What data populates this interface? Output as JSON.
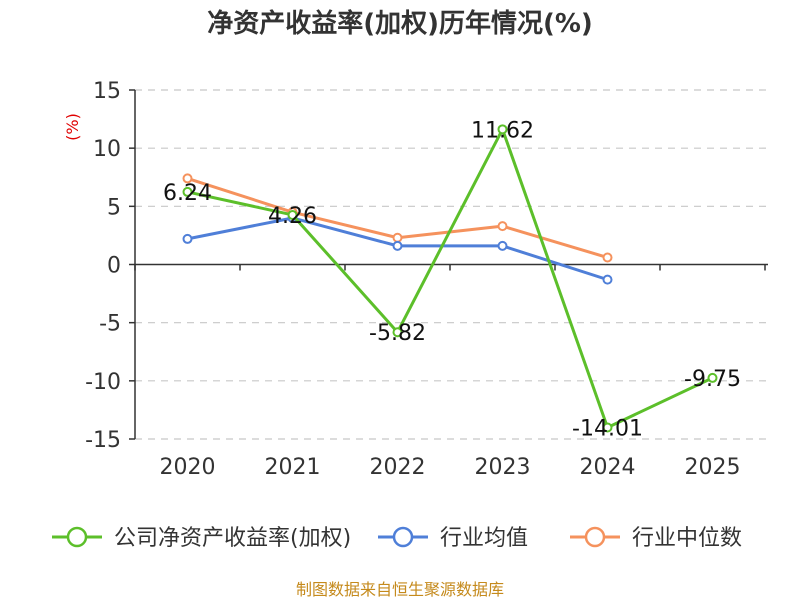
{
  "chart_data": {
    "type": "line",
    "title": "净资产收益率(加权)历年情况(%)",
    "ylabel": "(%)",
    "xlabel": "",
    "categories": [
      "2020",
      "2021",
      "2022",
      "2023",
      "2024",
      "2025"
    ],
    "ylim": [
      -15,
      15
    ],
    "yticks": [
      15,
      10,
      5,
      0,
      -5,
      -10,
      -15
    ],
    "ytick_labels": [
      "15",
      "10",
      "5",
      "0",
      "-5",
      "-10",
      "-15"
    ],
    "grid": true,
    "legend_position": "bottom",
    "series": [
      {
        "name": "公司净资产收益率(加权)",
        "color": "#5cbf2a",
        "values": [
          6.24,
          4.26,
          -5.82,
          11.62,
          -14.01,
          -9.75
        ],
        "value_labels": [
          "6.24",
          "4.26",
          "-5.82",
          "11.62",
          "-14.01",
          "-9.75"
        ],
        "show_labels": true
      },
      {
        "name": "行业均值",
        "color": "#4f7fd8",
        "values": [
          2.2,
          4.0,
          1.6,
          1.6,
          -1.3,
          null
        ],
        "show_labels": false
      },
      {
        "name": "行业中位数",
        "color": "#f5925d",
        "values": [
          7.4,
          4.5,
          2.3,
          3.3,
          0.6,
          null
        ],
        "show_labels": false
      }
    ]
  },
  "footer": {
    "source": "制图数据来自恒生聚源数据库"
  }
}
